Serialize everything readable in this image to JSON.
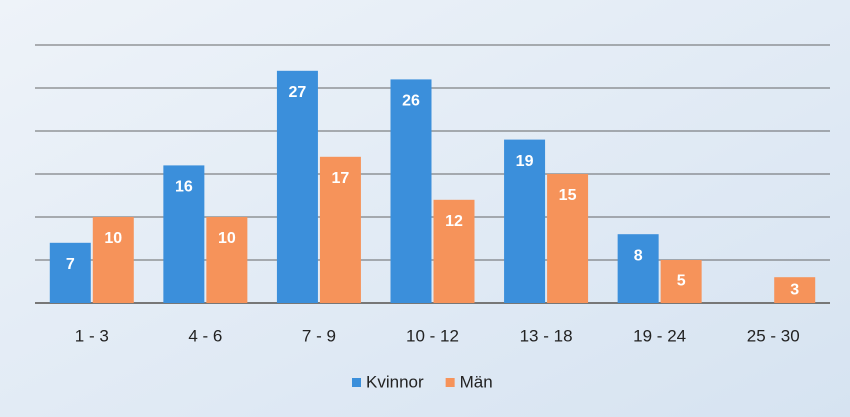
{
  "chart_data": {
    "type": "bar",
    "categories": [
      "1 - 3",
      "4 - 6",
      "7 - 9",
      "10 - 12",
      "13 - 18",
      "19 - 24",
      "25 - 30"
    ],
    "series": [
      {
        "name": "Kvinnor",
        "color": "#3b8fdb",
        "values": [
          7,
          16,
          27,
          26,
          19,
          8,
          null
        ]
      },
      {
        "name": "Män",
        "color": "#f6935a",
        "values": [
          10,
          10,
          17,
          12,
          15,
          5,
          3
        ]
      }
    ],
    "ylim": [
      0,
      30
    ],
    "yticks": [
      0,
      5,
      10,
      15,
      20,
      25,
      30
    ],
    "grid": true
  }
}
